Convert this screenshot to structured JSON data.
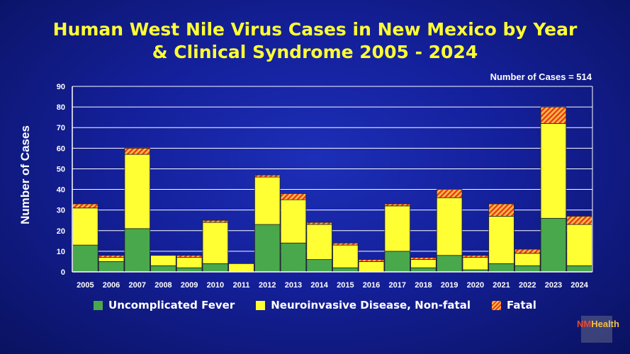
{
  "chart_data": {
    "type": "bar",
    "stacked": true,
    "title_line1": "Human West Nile Virus Cases in New Mexico by Year",
    "title_line2": "& Clinical Syndrome 2005 - 2024",
    "annotation": "Number of Cases = 514",
    "ylabel": "Number of Cases",
    "xlabel": "",
    "ylim": [
      0,
      90
    ],
    "yticks": [
      0,
      10,
      20,
      30,
      40,
      50,
      60,
      70,
      80,
      90
    ],
    "grid": true,
    "legend_position": "bottom",
    "categories": [
      "2005",
      "2006",
      "2007",
      "2008",
      "2009",
      "2010",
      "2011",
      "2012",
      "2013",
      "2014",
      "2015",
      "2016",
      "2017",
      "2018",
      "2019",
      "2020",
      "2021",
      "2022",
      "2023",
      "2024"
    ],
    "series": [
      {
        "name": "Uncomplicated Fever",
        "color": "#4aa84c",
        "values": [
          13,
          5,
          21,
          3,
          2,
          4,
          0,
          23,
          14,
          6,
          2,
          0,
          10,
          2,
          8,
          1,
          4,
          3,
          26,
          3
        ]
      },
      {
        "name": "Neuroinvasive Disease, Non-fatal",
        "color": "#ffff33",
        "values": [
          18,
          2,
          36,
          5,
          5,
          20,
          4,
          23,
          21,
          17,
          11,
          5,
          22,
          4,
          28,
          6,
          23,
          6,
          46,
          20
        ]
      },
      {
        "name": "Fatal",
        "color": "#ee3b24",
        "values": [
          2,
          1,
          3,
          0,
          1,
          1,
          0,
          1,
          3,
          1,
          1,
          1,
          1,
          1,
          4,
          1,
          6,
          2,
          8,
          4
        ]
      }
    ]
  },
  "logo": {
    "part1": "NM",
    "part2": "Health"
  }
}
